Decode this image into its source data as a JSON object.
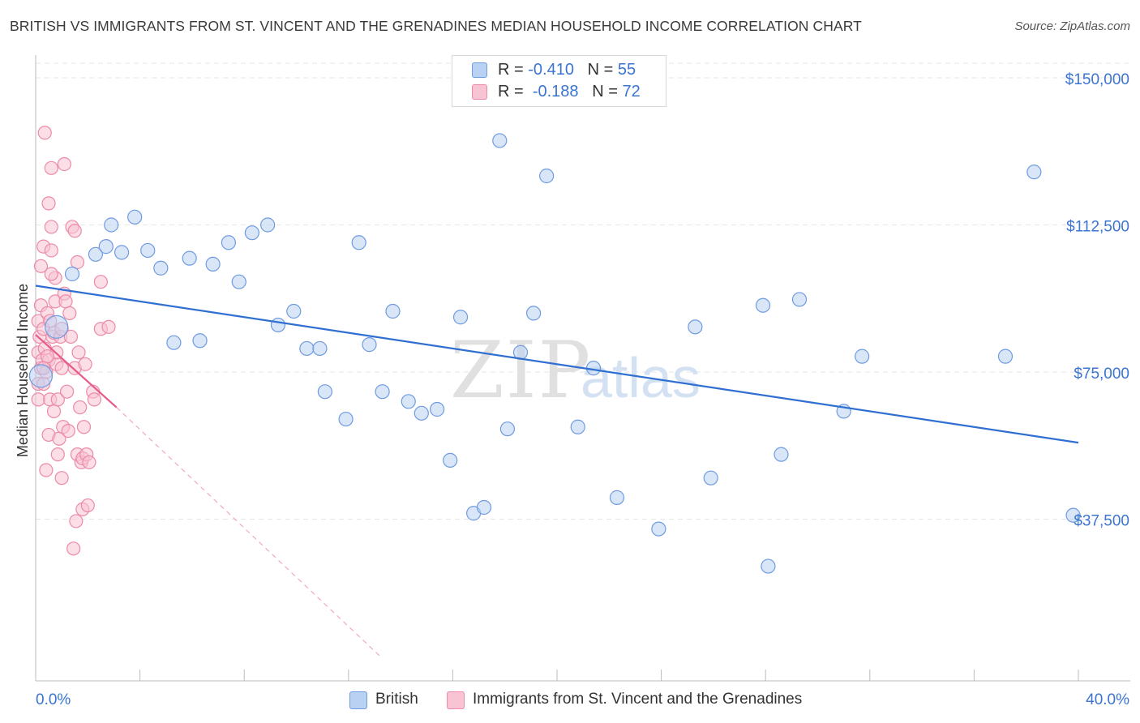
{
  "title": "BRITISH VS IMMIGRANTS FROM ST. VINCENT AND THE GRENADINES MEDIAN HOUSEHOLD INCOME CORRELATION CHART",
  "source": "Source: ZipAtlas.com",
  "watermark": {
    "zip": "ZIP",
    "atlas": "atlas"
  },
  "legend": {
    "rows": [
      {
        "r_label": "R = ",
        "r_value": "-0.410",
        "n_label": "N = ",
        "n_value": "55"
      },
      {
        "r_label": "R = ",
        "r_value": "-0.188",
        "n_label": "N = ",
        "n_value": "72"
      }
    ]
  },
  "colors": {
    "british_fill": "#b9d2f3",
    "british_stroke": "#6f9be0",
    "british_line": "#2f6fd1",
    "svg_fill": "#f8c3d2",
    "svg_stroke": "#ec8aa7",
    "svg_line": "#e85a87",
    "axis_label": "#3b74d1",
    "grid": "#e6e6e6"
  },
  "chart_data": {
    "type": "scatter",
    "title": "BRITISH VS IMMIGRANTS FROM ST. VINCENT AND THE GRENADINES MEDIAN HOUSEHOLD INCOME CORRELATION CHART",
    "xlabel": "",
    "ylabel": "Median Household Income",
    "xlim": [
      0,
      40
    ],
    "ylim": [
      0,
      155000
    ],
    "x_tick_labels": [
      "0.0%",
      "40.0%"
    ],
    "y_ticks": [
      37500,
      75000,
      112500,
      150000
    ],
    "y_tick_labels": [
      "$37,500",
      "$75,000",
      "$112,500",
      "$150,000"
    ],
    "grid": true,
    "legend_position": "bottom",
    "series": [
      {
        "name": "British",
        "r": -0.41,
        "n": 55,
        "trend": {
          "x": [
            0,
            40
          ],
          "y": [
            97000,
            57000
          ]
        },
        "points": [
          [
            0.2,
            74000
          ],
          [
            0.8,
            86500
          ],
          [
            1.4,
            100000
          ],
          [
            2.3,
            105000
          ],
          [
            2.7,
            107000
          ],
          [
            2.9,
            112500
          ],
          [
            3.3,
            105500
          ],
          [
            3.8,
            114500
          ],
          [
            4.3,
            106000
          ],
          [
            4.8,
            101500
          ],
          [
            5.3,
            82500
          ],
          [
            5.9,
            104000
          ],
          [
            6.3,
            83000
          ],
          [
            6.8,
            102500
          ],
          [
            7.4,
            108000
          ],
          [
            7.8,
            98000
          ],
          [
            8.3,
            110500
          ],
          [
            8.9,
            112500
          ],
          [
            9.3,
            87000
          ],
          [
            9.9,
            90500
          ],
          [
            10.4,
            81000
          ],
          [
            10.9,
            81000
          ],
          [
            11.1,
            70000
          ],
          [
            11.9,
            63000
          ],
          [
            12.4,
            108000
          ],
          [
            12.8,
            82000
          ],
          [
            13.3,
            70000
          ],
          [
            13.7,
            90500
          ],
          [
            14.3,
            67500
          ],
          [
            14.8,
            64500
          ],
          [
            15.4,
            65500
          ],
          [
            15.9,
            52500
          ],
          [
            16.3,
            89000
          ],
          [
            16.8,
            39000
          ],
          [
            17.2,
            40500
          ],
          [
            17.8,
            134000
          ],
          [
            18.1,
            60500
          ],
          [
            18.6,
            80000
          ],
          [
            19.1,
            90000
          ],
          [
            19.6,
            125000
          ],
          [
            20.8,
            61000
          ],
          [
            21.4,
            76000
          ],
          [
            22.3,
            43000
          ],
          [
            23.9,
            35000
          ],
          [
            25.3,
            86500
          ],
          [
            25.9,
            48000
          ],
          [
            27.9,
            92000
          ],
          [
            28.1,
            25500
          ],
          [
            28.6,
            54000
          ],
          [
            29.3,
            93500
          ],
          [
            31.0,
            65000
          ],
          [
            31.7,
            79000
          ],
          [
            37.2,
            79000
          ],
          [
            38.3,
            126000
          ],
          [
            39.8,
            38500
          ]
        ]
      },
      {
        "name": "Immigrants from St. Vincent and the Grenadines",
        "r": -0.188,
        "n": 72,
        "trend": {
          "x": [
            0,
            3.1
          ],
          "y": [
            84500,
            66000
          ]
        },
        "trend_extension": {
          "x": [
            3.1,
            13.3
          ],
          "y": [
            66000,
            2000
          ]
        },
        "points": [
          [
            0.1,
            88000
          ],
          [
            0.1,
            80000
          ],
          [
            0.1,
            72000
          ],
          [
            0.1,
            68000
          ],
          [
            0.15,
            84000
          ],
          [
            0.2,
            76000
          ],
          [
            0.2,
            92000
          ],
          [
            0.2,
            102000
          ],
          [
            0.25,
            78000
          ],
          [
            0.3,
            107000
          ],
          [
            0.3,
            86000
          ],
          [
            0.3,
            72000
          ],
          [
            0.35,
            136000
          ],
          [
            0.35,
            81000
          ],
          [
            0.4,
            50000
          ],
          [
            0.4,
            75000
          ],
          [
            0.45,
            90000
          ],
          [
            0.5,
            118000
          ],
          [
            0.5,
            78000
          ],
          [
            0.5,
            59000
          ],
          [
            0.55,
            68000
          ],
          [
            0.6,
            127000
          ],
          [
            0.6,
            112000
          ],
          [
            0.6,
            106000
          ],
          [
            0.65,
            84000
          ],
          [
            0.7,
            65000
          ],
          [
            0.7,
            85000
          ],
          [
            0.75,
            93000
          ],
          [
            0.75,
            99000
          ],
          [
            0.8,
            77000
          ],
          [
            0.8,
            80000
          ],
          [
            0.85,
            68000
          ],
          [
            0.85,
            54000
          ],
          [
            0.9,
            58000
          ],
          [
            0.95,
            84000
          ],
          [
            1.0,
            48000
          ],
          [
            1.0,
            76000
          ],
          [
            1.0,
            86000
          ],
          [
            1.05,
            61000
          ],
          [
            1.1,
            128000
          ],
          [
            1.1,
            95000
          ],
          [
            1.15,
            93000
          ],
          [
            1.2,
            70000
          ],
          [
            1.25,
            60000
          ],
          [
            1.3,
            90000
          ],
          [
            1.35,
            84000
          ],
          [
            1.4,
            112000
          ],
          [
            1.45,
            30000
          ],
          [
            1.5,
            111000
          ],
          [
            1.5,
            76000
          ],
          [
            1.55,
            37000
          ],
          [
            1.6,
            54000
          ],
          [
            1.6,
            103000
          ],
          [
            1.65,
            80000
          ],
          [
            1.7,
            66000
          ],
          [
            1.75,
            52000
          ],
          [
            1.8,
            40000
          ],
          [
            1.8,
            53000
          ],
          [
            1.85,
            61000
          ],
          [
            1.9,
            77000
          ],
          [
            1.95,
            54000
          ],
          [
            2.0,
            41000
          ],
          [
            2.05,
            52000
          ],
          [
            2.2,
            70000
          ],
          [
            2.25,
            68000
          ],
          [
            2.5,
            98000
          ],
          [
            2.5,
            86000
          ],
          [
            2.8,
            86500
          ],
          [
            0.45,
            79000
          ],
          [
            0.55,
            88000
          ],
          [
            0.3,
            76000
          ],
          [
            0.6,
            100000
          ]
        ]
      }
    ]
  }
}
